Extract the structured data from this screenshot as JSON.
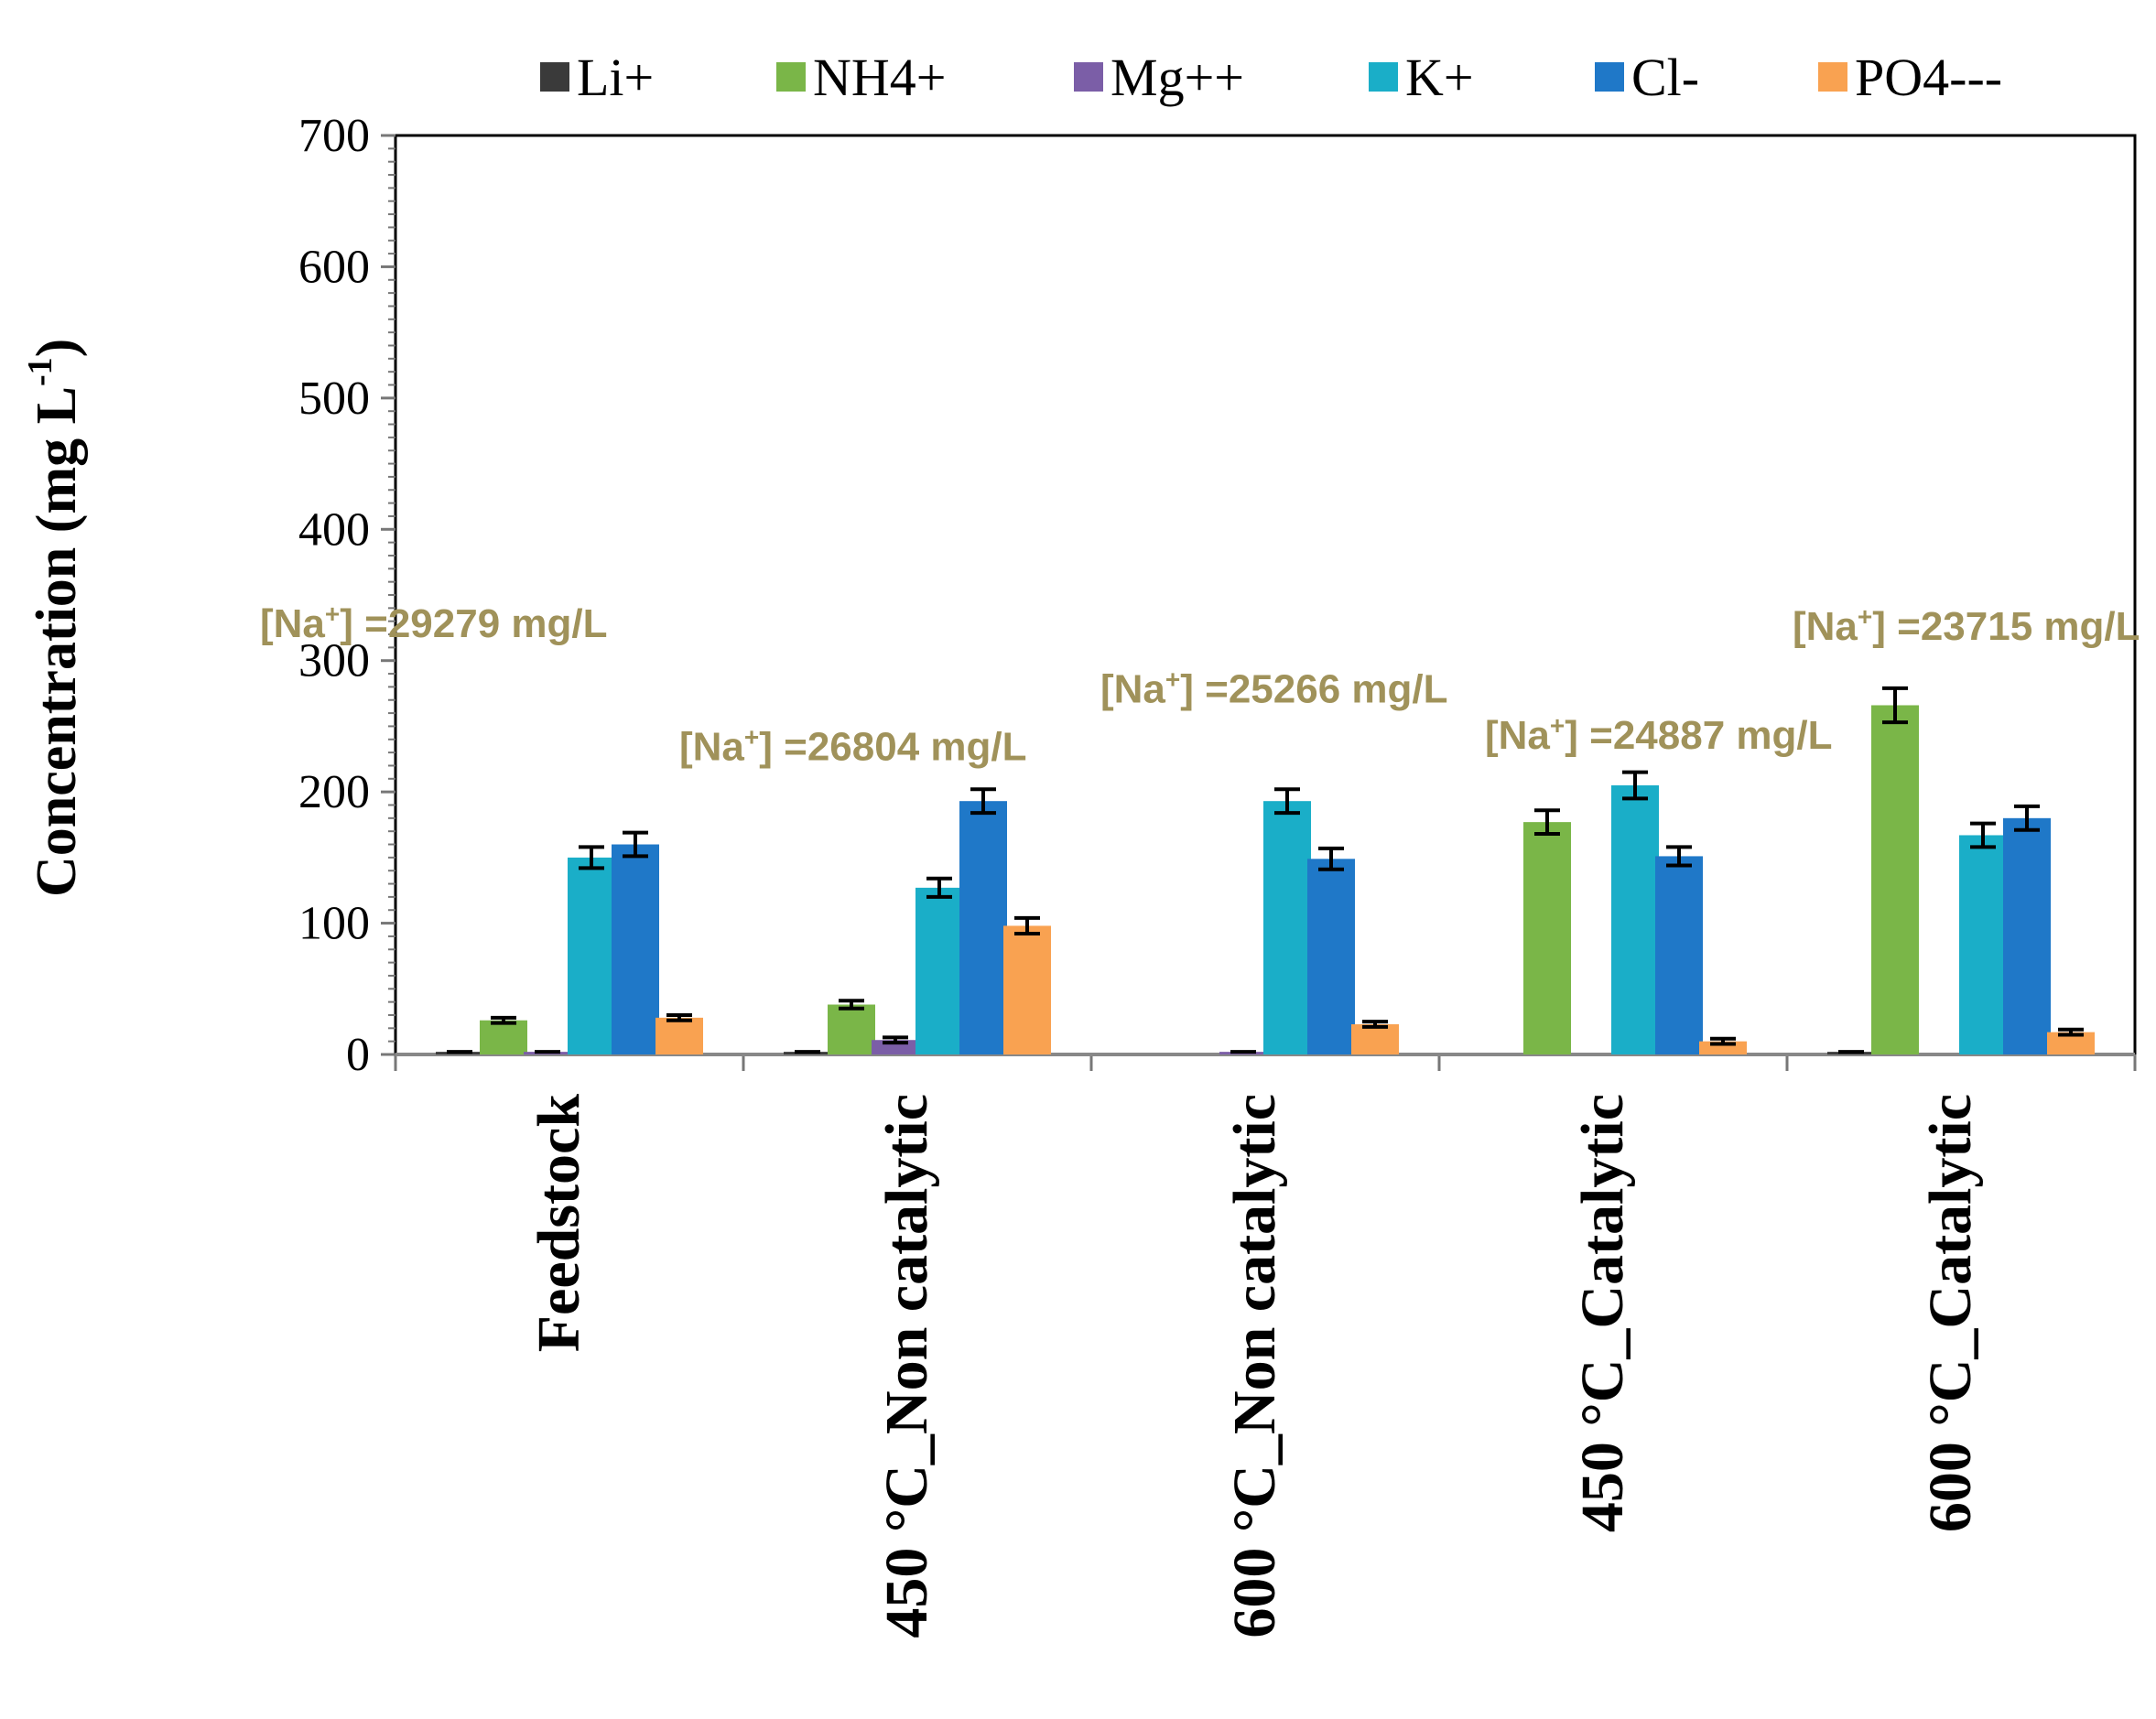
{
  "chart_data": {
    "type": "bar",
    "title": "",
    "xlabel": "",
    "ylabel": "Concentration (mg L",
    "ylabel_sup": "-1",
    "ylabel_close": ")",
    "ylim": [
      0,
      700
    ],
    "yticks": [
      0,
      100,
      200,
      300,
      400,
      500,
      600,
      700
    ],
    "grid": false,
    "legend_position": "top",
    "categories": [
      "Feedstock",
      "450 °C_Non catalytic",
      "600 °C_Non catalytic",
      "450 °C_Catalytic",
      "600 °C_Catalytic"
    ],
    "series": [
      {
        "name": "Li+",
        "color": "#3a3a3a",
        "values": [
          2,
          2,
          0,
          0,
          2
        ],
        "errors": [
          0,
          0,
          0,
          0,
          0
        ]
      },
      {
        "name": "NH4+",
        "color": "#7ab648",
        "values": [
          26,
          38,
          0,
          177,
          266
        ],
        "errors": [
          2,
          3,
          0,
          9,
          13
        ]
      },
      {
        "name": "Mg++",
        "color": "#7b5ea7",
        "values": [
          2,
          11,
          2,
          0,
          0
        ],
        "errors": [
          0,
          2,
          0,
          0,
          0
        ]
      },
      {
        "name": "K+",
        "color": "#1aaec8",
        "values": [
          150,
          127,
          193,
          205,
          167
        ],
        "errors": [
          8,
          7,
          9,
          10,
          9
        ]
      },
      {
        "name": "Cl-",
        "color": "#1f78c8",
        "values": [
          160,
          193,
          149,
          151,
          180
        ],
        "errors": [
          9,
          9,
          8,
          7,
          9
        ]
      },
      {
        "name": "PO4---",
        "color": "#f9a251",
        "values": [
          28,
          98,
          23,
          10,
          17
        ],
        "errors": [
          2,
          6,
          2,
          2,
          2
        ]
      }
    ],
    "annotations": [
      {
        "prefix": "[Na",
        "sup": "+",
        "suffix": "] =29279 mg/L",
        "category": "Feedstock",
        "value": 318
      },
      {
        "prefix": "[Na",
        "sup": "+",
        "suffix": "] =26804 mg/L",
        "category": "450 °C_Non catalytic",
        "value": 224
      },
      {
        "prefix": "[Na",
        "sup": "+",
        "suffix": "] =25266 mg/L",
        "category": "600 °C_Non catalytic",
        "value": 268
      },
      {
        "prefix": "[Na",
        "sup": "+",
        "suffix": "] =24887 mg/L",
        "category": "450 °C_Catalytic",
        "value": 233
      },
      {
        "prefix": "[Na",
        "sup": "+",
        "suffix": "] =23715 mg/L",
        "category": "600 °C_Catalytic",
        "value": 316
      }
    ]
  }
}
